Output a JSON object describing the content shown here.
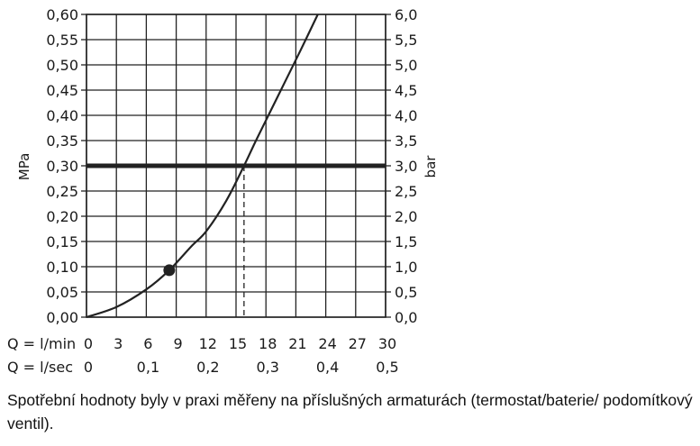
{
  "chart_data": {
    "type": "line",
    "ylabel": "MPa",
    "y2label": "bar",
    "ylim": [
      0,
      0.6
    ],
    "y2lim": [
      0,
      6
    ],
    "xlim": [
      0,
      30
    ],
    "grid": true,
    "y_ticks": [
      "0,00",
      "0,05",
      "0,10",
      "0,15",
      "0,20",
      "0,25",
      "0,30",
      "0,35",
      "0,40",
      "0,45",
      "0,50",
      "0,55",
      "0,60"
    ],
    "y2_ticks": [
      "0,0",
      "0,5",
      "1,0",
      "1,5",
      "2,0",
      "2,5",
      "3,0",
      "3,5",
      "4,0",
      "4,5",
      "5,0",
      "5,5",
      "6,0"
    ],
    "x_ticks_lmin": {
      "label": "Q = l/min",
      "values": [
        0,
        3,
        6,
        9,
        12,
        15,
        18,
        21,
        24,
        27,
        30
      ],
      "labels": [
        "0",
        "3",
        "6",
        "9",
        "12",
        "15",
        "18",
        "21",
        "24",
        "27",
        "30"
      ]
    },
    "x_ticks_lsec": {
      "label": "Q = l/sec",
      "values": [
        0,
        6,
        12,
        18,
        24,
        30
      ],
      "labels": [
        "0",
        "0,1",
        "0,2",
        "0,3",
        "0,4",
        "0,5"
      ]
    },
    "series": [
      {
        "x": [
          0,
          3,
          6,
          8.3,
          10.5,
          12,
          14,
          15.8,
          17,
          18.5,
          20,
          21.5,
          23.2
        ],
        "y": [
          0,
          0.02,
          0.055,
          0.093,
          0.14,
          0.17,
          0.23,
          0.3,
          0.35,
          0.41,
          0.47,
          0.53,
          0.6
        ]
      }
    ],
    "marker": {
      "x": 8.3,
      "y": 0.093
    },
    "reference_line": {
      "y": 0.3
    },
    "reference_drop": {
      "x": 15.8,
      "y": 0.3
    }
  },
  "caption": "Spotřební hodnoty byly v praxi měřeny na příslušných armaturách (termostat/baterie/ podomítkový ventil)."
}
